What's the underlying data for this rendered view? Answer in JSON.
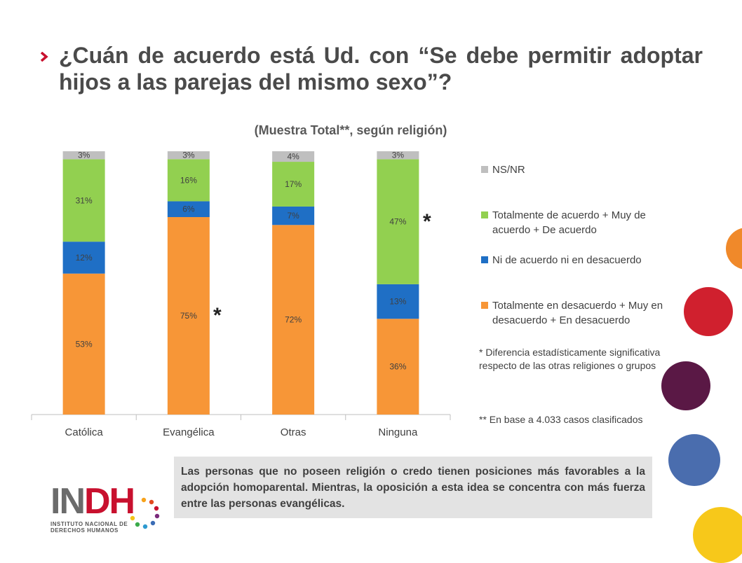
{
  "title": {
    "line1": "¿Cuán de acuerdo está Ud. con “Se debe permitir adoptar",
    "line2": "hijos a las parejas del mismo sexo”?"
  },
  "colors": {
    "orange": "#F79637",
    "blue": "#1F6FC5",
    "green": "#92D050",
    "gray": "#BFBFBF",
    "accent_red": "#C8102E"
  },
  "chart_data": {
    "type": "bar",
    "stacked": true,
    "title": "(Muestra Total**, según religión)",
    "categories": [
      "Católica",
      "Evangélica",
      "Otras",
      "Ninguna"
    ],
    "series": [
      {
        "name": "Totalmente en desacuerdo + Muy en desacuerdo + En desacuerdo",
        "color": "#F79637",
        "values": [
          53,
          75,
          72,
          36
        ],
        "labels": [
          "53%",
          "75%",
          "72%",
          "36%"
        ]
      },
      {
        "name": "Ni de acuerdo ni en desacuerdo",
        "color": "#1F6FC5",
        "values": [
          12,
          6,
          7,
          13
        ],
        "labels": [
          "12%",
          "6%",
          "7%",
          "13%"
        ]
      },
      {
        "name": "Totalmente de acuerdo + Muy de acuerdo + De acuerdo",
        "color": "#92D050",
        "values": [
          31,
          16,
          17,
          47
        ],
        "labels": [
          "31%",
          "16%",
          "17%",
          "47%"
        ]
      },
      {
        "name": "NS/NR",
        "color": "#BFBFBF",
        "values": [
          3,
          3,
          4,
          3
        ],
        "labels": [
          "3%",
          "3%",
          "4%",
          "3%"
        ]
      }
    ],
    "legend_placement": "right",
    "grid": false,
    "annotations": [
      "*",
      "*"
    ]
  },
  "legend": {
    "nsnr": "NS/NR",
    "acuerdo": "Totalmente de acuerdo + Muy de acuerdo + De acuerdo",
    "ni": "Ni de acuerdo ni en desacuerdo",
    "desacuerdo": "Totalmente en desacuerdo + Muy en desacuerdo + En desacuerdo"
  },
  "notes": {
    "significance": "* Diferencia estadísticamente significativa respecto de las otras religiones o grupos",
    "base": "** En base a 4.033 casos clasificados"
  },
  "stars": {
    "evangelica": "*",
    "ninguna": "*"
  },
  "callout": "Las personas que no poseen religión o credo tienen posiciones más favorables a la adopción homoparental. Mientras, la oposición a esta idea se concentra con más fuerza entre las personas evangélicas.",
  "logo": {
    "text_in": "IN",
    "text_dh": "DH",
    "sub_line1": "INSTITUTO NACIONAL DE",
    "sub_line2": "DERECHOS HUMANOS"
  }
}
